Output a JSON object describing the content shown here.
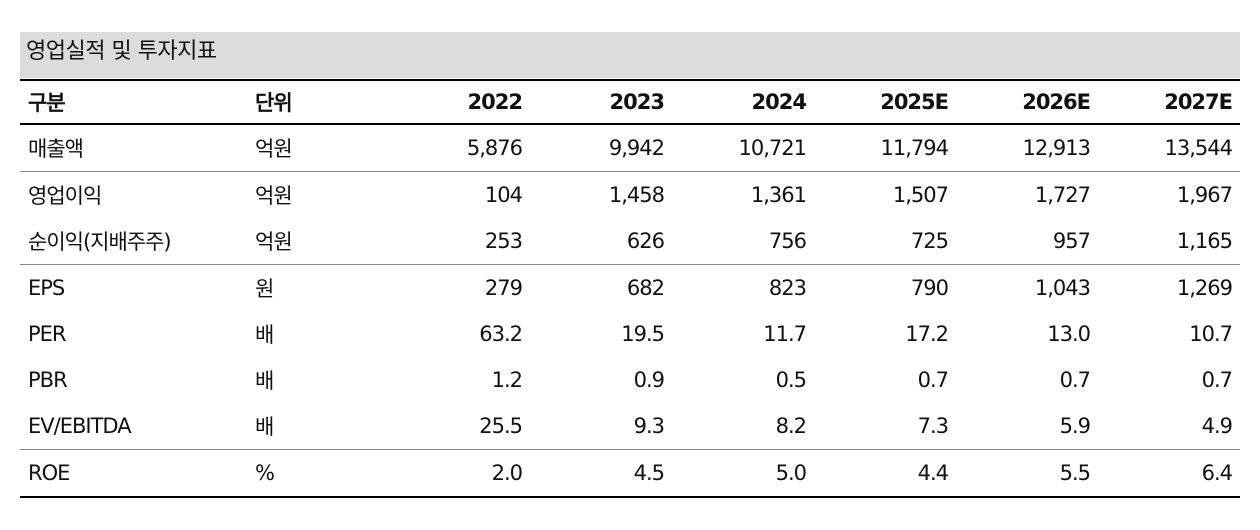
{
  "title": "영업실적 및 투자지표",
  "header": {
    "label": "구분",
    "unit": "단위",
    "years": [
      "2022",
      "2023",
      "2024",
      "2025E",
      "2026E",
      "2027E"
    ]
  },
  "rows": [
    {
      "label": "매출액",
      "unit": "억원",
      "values": [
        "5,876",
        "9,942",
        "10,721",
        "11,794",
        "12,913",
        "13,544"
      ]
    },
    {
      "label": "영업이익",
      "unit": "억원",
      "values": [
        "104",
        "1,458",
        "1,361",
        "1,507",
        "1,727",
        "1,967"
      ]
    },
    {
      "label": "순이익(지배주주)",
      "unit": "억원",
      "values": [
        "253",
        "626",
        "756",
        "725",
        "957",
        "1,165"
      ]
    },
    {
      "label": "EPS",
      "unit": "원",
      "values": [
        "279",
        "682",
        "823",
        "790",
        "1,043",
        "1,269"
      ]
    },
    {
      "label": "PER",
      "unit": "배",
      "values": [
        "63.2",
        "19.5",
        "11.7",
        "17.2",
        "13.0",
        "10.7"
      ]
    },
    {
      "label": "PBR",
      "unit": "배",
      "values": [
        "1.2",
        "0.9",
        "0.5",
        "0.7",
        "0.7",
        "0.7"
      ]
    },
    {
      "label": "EV/EBITDA",
      "unit": "배",
      "values": [
        "25.5",
        "9.3",
        "8.2",
        "7.3",
        "5.9",
        "4.9"
      ]
    },
    {
      "label": "ROE",
      "unit": "%",
      "values": [
        "2.0",
        "4.5",
        "5.0",
        "4.4",
        "5.5",
        "6.4"
      ]
    }
  ]
}
